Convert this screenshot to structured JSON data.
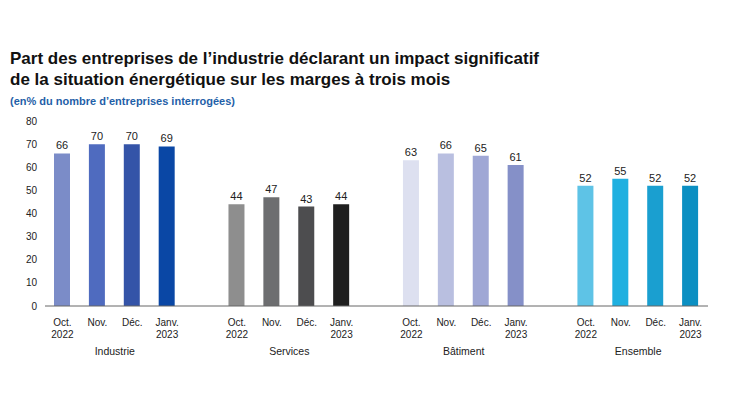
{
  "chart_data": {
    "type": "bar",
    "title": "Part des entreprises de l’industrie déclarant un impact significatif de la situation énergétique sur les marges à trois mois",
    "subtitle": "(en% du nombre d’entreprises interrogées)",
    "categories": [
      "Oct. 2022",
      "Nov.",
      "Déc.",
      "Janv. 2023"
    ],
    "series": [
      {
        "name": "Industrie",
        "colors": [
          "#7b8cc8",
          "#4f6bbf",
          "#3454a8",
          "#0a47a5"
        ],
        "values": [
          66,
          70,
          70,
          69
        ]
      },
      {
        "name": "Services",
        "colors": [
          "#8e8e8e",
          "#6d6e70",
          "#4d4d4f",
          "#1f1f1f"
        ],
        "values": [
          44,
          47,
          43,
          44
        ]
      },
      {
        "name": "Bâtiment",
        "colors": [
          "#dde0f0",
          "#b9bfe0",
          "#9fa7d5",
          "#8590c8"
        ],
        "values": [
          63,
          66,
          65,
          61
        ]
      },
      {
        "name": "Ensemble",
        "colors": [
          "#5ec3e6",
          "#1fb0e0",
          "#1a9fd0",
          "#0b8fc2"
        ],
        "values": [
          52,
          55,
          52,
          52
        ]
      }
    ],
    "ylim": [
      0,
      80
    ],
    "yticks": [
      0,
      10,
      20,
      30,
      40,
      50,
      60,
      70,
      80
    ],
    "data_labels": true,
    "grid": false
  }
}
